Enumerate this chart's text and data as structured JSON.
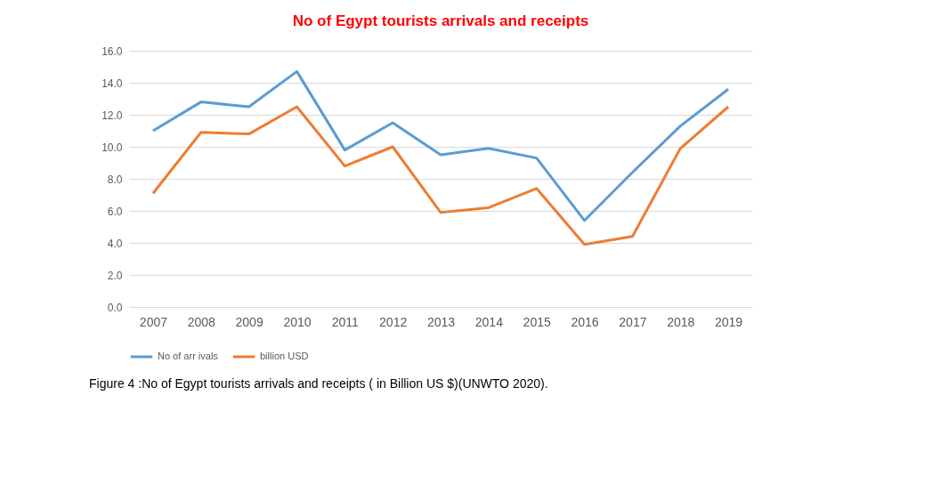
{
  "chart_data": {
    "type": "line",
    "title": "No of  Egypt tourists arrivals and receipts",
    "categories": [
      "2007",
      "2008",
      "2009",
      "2010",
      "2011",
      "2012",
      "2013",
      "2014",
      "2015",
      "2016",
      "2017",
      "2018",
      "2019"
    ],
    "series": [
      {
        "name": "No of arr ivals",
        "color": "#5b9bd5",
        "values": [
          11.0,
          12.8,
          12.5,
          14.7,
          9.8,
          11.5,
          9.5,
          9.9,
          9.3,
          5.4,
          8.4,
          11.3,
          13.6
        ]
      },
      {
        "name": "billion USD",
        "color": "#ed7d31",
        "values": [
          7.1,
          10.9,
          10.8,
          12.5,
          8.8,
          10.0,
          5.9,
          6.2,
          7.4,
          3.9,
          4.4,
          9.9,
          12.5
        ]
      }
    ],
    "ylim": [
      0,
      16
    ],
    "yticks": [
      {
        "value": 0,
        "label": "0.0"
      },
      {
        "value": 2,
        "label": "2.0"
      },
      {
        "value": 4,
        "label": "4.0"
      },
      {
        "value": 6,
        "label": "6.0"
      },
      {
        "value": 8,
        "label": "8.0"
      },
      {
        "value": 10,
        "label": "10.0"
      },
      {
        "value": 12,
        "label": "12.0"
      },
      {
        "value": 14,
        "label": "14.0"
      },
      {
        "value": 16,
        "label": "16.0"
      }
    ],
    "grid": "y",
    "legend": "bottom",
    "marker": "none",
    "line_style": "solid",
    "annotations": [
      "Figure 4 :No of  Egypt tourists arrivals and receipts  ( in Billion US $)(UNWTO 2020)."
    ]
  }
}
